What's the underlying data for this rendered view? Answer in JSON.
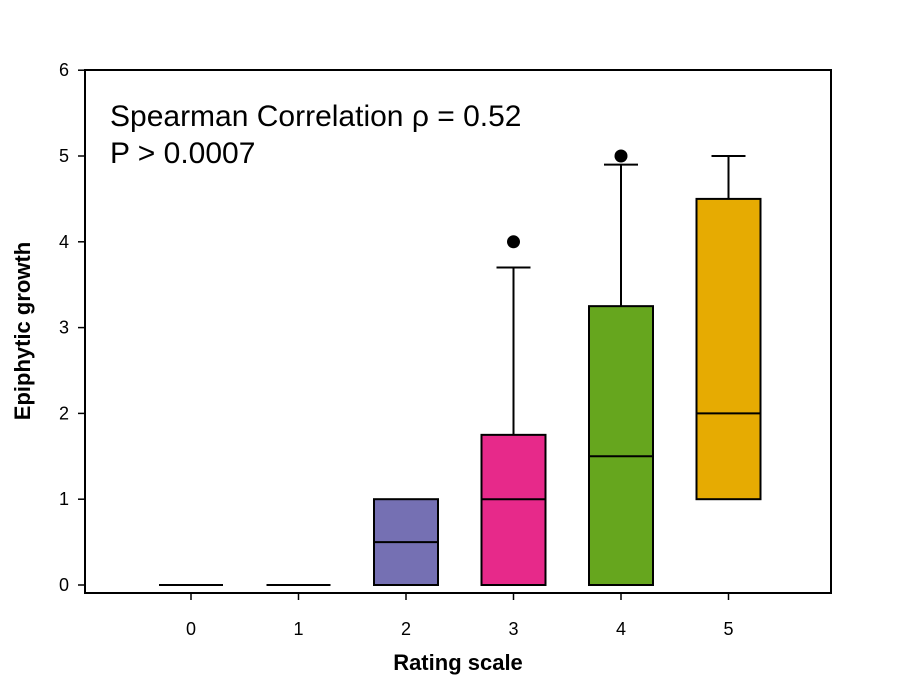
{
  "chart_data": {
    "type": "box",
    "xlabel": "Rating scale",
    "ylabel": "Epiphytic growth",
    "ylim": [
      0,
      6
    ],
    "yticks": [
      "0",
      "1",
      "2",
      "3",
      "4",
      "5",
      "6"
    ],
    "categories": [
      "0",
      "1",
      "2",
      "3",
      "4",
      "5"
    ],
    "annotation": {
      "line1": "Spearman Correlation ρ = 0.52",
      "line2": "P > 0.0007"
    },
    "boxes": [
      {
        "category": "0",
        "whisker_low": 0,
        "q1": 0,
        "median": 0,
        "q3": 0,
        "whisker_high": 0,
        "outliers": [],
        "color": "#ffffff"
      },
      {
        "category": "1",
        "whisker_low": 0,
        "q1": 0,
        "median": 0,
        "q3": 0,
        "whisker_high": 0,
        "outliers": [],
        "color": "#ffffff"
      },
      {
        "category": "2",
        "whisker_low": 0,
        "q1": 0,
        "median": 0.5,
        "q3": 1,
        "whisker_high": 1,
        "outliers": [],
        "color": "#7570b3"
      },
      {
        "category": "3",
        "whisker_low": 0,
        "q1": 0,
        "median": 1,
        "q3": 1.75,
        "whisker_high": 3.7,
        "outliers": [
          4
        ],
        "color": "#e7298a"
      },
      {
        "category": "4",
        "whisker_low": 0,
        "q1": 0,
        "median": 1.5,
        "q3": 3.25,
        "whisker_high": 4.9,
        "outliers": [
          5
        ],
        "color": "#66a61e"
      },
      {
        "category": "5",
        "whisker_low": 1,
        "q1": 1,
        "median": 2,
        "q3": 4.5,
        "whisker_high": 5,
        "outliers": [],
        "color": "#e6ab02"
      }
    ],
    "grid": false,
    "legend": "none"
  }
}
